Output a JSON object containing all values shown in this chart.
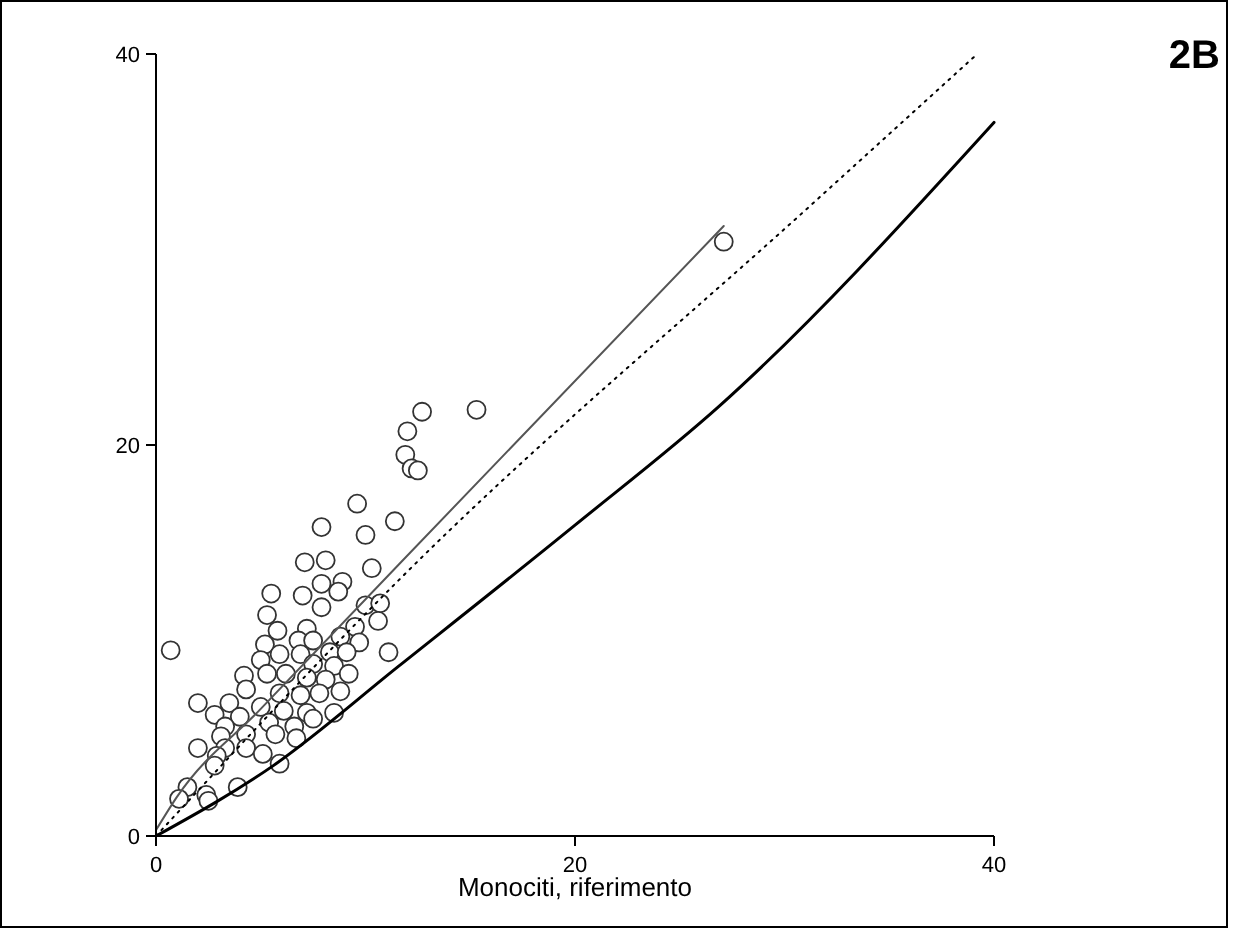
{
  "chart_data": {
    "type": "scatter",
    "title": "2B",
    "xlabel": "Monociti, riferimento",
    "xlim": [
      0,
      40
    ],
    "ylim": [
      0,
      40
    ],
    "xticks": [
      0,
      20,
      40
    ],
    "yticks": [
      0,
      20,
      40
    ],
    "grid": false,
    "series": [
      {
        "color": "#333333",
        "marker": "circle",
        "x": [
          0.7,
          7.9,
          11.4,
          10.0,
          7.1,
          8.1,
          10.3,
          7.9,
          8.9,
          7.0,
          5.5,
          8.7,
          7.9,
          10.0,
          10.7,
          5.3,
          10.6,
          5.8,
          7.2,
          9.5,
          5.2,
          6.8,
          7.5,
          8.8,
          9.7,
          11.1,
          5.9,
          6.9,
          8.3,
          9.1,
          5.0,
          7.5,
          8.5,
          9.2,
          4.2,
          5.3,
          6.2,
          7.2,
          8.1,
          4.3,
          5.9,
          6.9,
          7.8,
          8.8,
          2.0,
          3.5,
          5.0,
          6.1,
          7.2,
          8.5,
          2.8,
          4.0,
          5.4,
          6.6,
          7.5,
          3.3,
          4.3,
          5.7,
          6.7,
          3.1,
          2.0,
          3.3,
          4.3,
          5.1,
          2.9,
          5.9,
          2.8,
          1.5,
          2.4,
          3.9,
          1.1,
          2.5,
          12.7,
          15.3,
          12.0,
          11.9,
          12.2,
          12.5,
          9.6,
          27.1
        ],
        "values": [
          9.5,
          15.8,
          16.1,
          15.4,
          14.0,
          14.1,
          13.7,
          12.9,
          13.0,
          12.3,
          12.4,
          12.5,
          11.7,
          11.8,
          11.9,
          11.3,
          11.0,
          10.5,
          10.6,
          10.7,
          9.8,
          10.0,
          10.0,
          10.2,
          9.9,
          9.4,
          9.3,
          9.3,
          9.4,
          9.4,
          9.0,
          8.8,
          8.7,
          8.3,
          8.2,
          8.3,
          8.3,
          8.1,
          8.0,
          7.5,
          7.3,
          7.2,
          7.3,
          7.4,
          6.8,
          6.8,
          6.6,
          6.4,
          6.3,
          6.3,
          6.2,
          6.1,
          5.8,
          5.6,
          6.0,
          5.6,
          5.2,
          5.2,
          5.0,
          5.1,
          4.5,
          4.5,
          4.5,
          4.2,
          4.1,
          3.7,
          3.6,
          2.5,
          2.1,
          2.5,
          1.9,
          1.8,
          21.7,
          21.8,
          20.7,
          19.5,
          18.8,
          18.7,
          17.0,
          30.4
        ]
      },
      {
        "type": "line",
        "marker": "none",
        "color": "#000000",
        "line_style": "solid",
        "x": [
          0,
          5.6,
          11.6,
          20,
          26.9,
          40
        ],
        "values": [
          0,
          3.6,
          8.7,
          15.9,
          22.0,
          36.5
        ]
      },
      {
        "type": "line",
        "marker": "none",
        "color": "#555555",
        "line_style": "solid",
        "x": [
          0,
          1,
          5,
          11.6,
          27.1
        ],
        "values": [
          0.3,
          2.0,
          6.5,
          13.9,
          31.2
        ]
      },
      {
        "type": "line",
        "marker": "none",
        "color": "#000000",
        "line_style": "dotted",
        "x": [
          0,
          11.6,
          31.5,
          39.2
        ],
        "values": [
          0,
          13.1,
          32.5,
          40
        ]
      }
    ]
  }
}
